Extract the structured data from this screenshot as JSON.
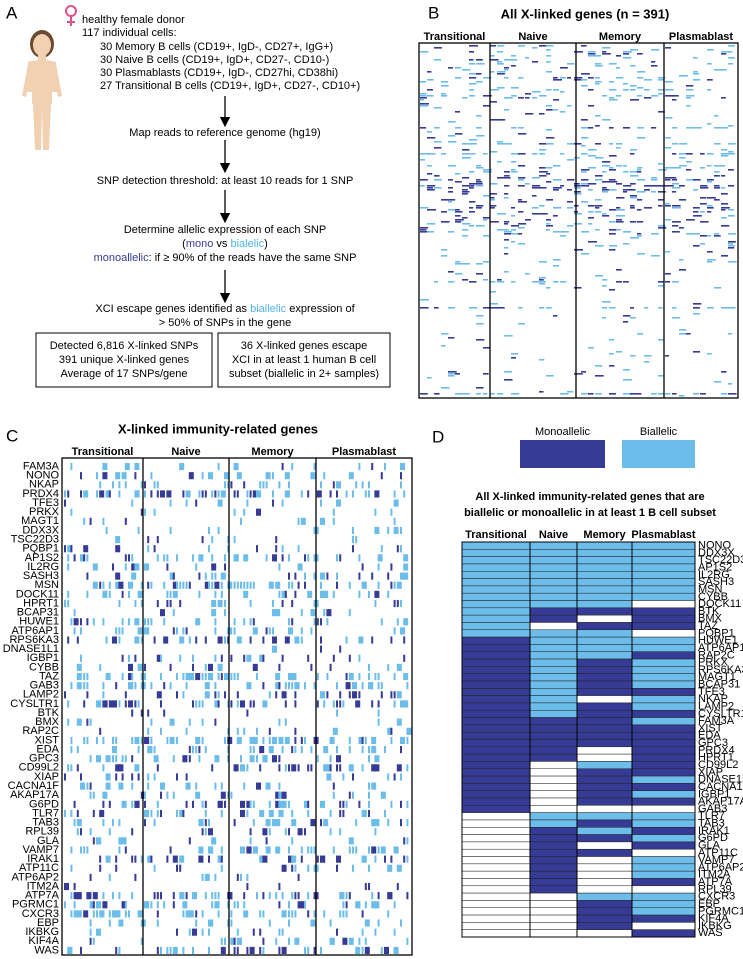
{
  "panel_labels": [
    "A",
    "B",
    "C",
    "D"
  ],
  "panel_a": {
    "donor": "healthy female donor",
    "cells_heading": "117 individual cells:",
    "cells": [
      "30 Memory B cells (CD19+, IgD-, CD27+, IgG+)",
      "30 Naive B cells (CD19+, IgD+, CD27-, CD10-)",
      "30 Plasmablasts (CD19+, IgD-, CD27hi, CD38hi)",
      "27 Transitional B cells (CD19+, IgD+, CD27-, CD10+)"
    ],
    "map_step": "Map reads to reference genome (hg19)",
    "snp_step": "SNP detection threshold: at least 10 reads for 1 SNP",
    "allelic_step": {
      "line1": "Determine allelic expression of each SNP",
      "open": "(",
      "mono": "mono",
      "vs": " vs ",
      "bi": "bialelic",
      "close": ")",
      "mono_word": "monoallelic",
      "mono_rule": ": if ≥ 90% of the reads have the same SNP"
    },
    "escape_step": {
      "prefix": "XCI escape genes identified as ",
      "bi_word": "biallelic",
      "suffix": " expression of",
      "line2": "> 50% of SNPs in the gene"
    },
    "box_left": [
      "Detected 6,816 X-linked SNPs",
      "391 unique X-linked genes",
      "Average of 17 SNPs/gene"
    ],
    "box_right": [
      "36 X-linked genes escape",
      "XCI in at least 1 human B cell",
      "subset (biallelic in 2+ samples)"
    ]
  },
  "panel_b": {
    "title": "All X-linked genes (n = 391)",
    "columns": [
      "Transitional",
      "Naive",
      "Memory",
      "Plasmablast"
    ]
  },
  "panel_c": {
    "title": "X-linked immunity-related genes",
    "columns": [
      "Transitional",
      "Naive",
      "Memory",
      "Plasmablast"
    ],
    "genes": [
      "FAM3A",
      "NONO",
      "NKAP",
      "PRDX4",
      "TFE3",
      "PRKX",
      "MAGT1",
      "DDX3X",
      "TSC22D3",
      "PQBP1",
      "AP1S2",
      "IL2RG",
      "SASH3",
      "MSN",
      "DOCK11",
      "HPRT1",
      "BCAP31",
      "HUWE1",
      "ATP6AP1",
      "RPS6KA3",
      "DNASE1L1",
      "IGBP1",
      "CYBB",
      "TAZ",
      "GAB3",
      "LAMP2",
      "CYSLTR1",
      "BTK",
      "BMX",
      "RAP2C",
      "XIST",
      "EDA",
      "GPC3",
      "CD99L2",
      "XIAP",
      "CACNA1F",
      "AKAP17A",
      "G6PD",
      "TLR7",
      "TAB3",
      "RPL39",
      "GLA",
      "VAMP7",
      "IRAK1",
      "ATP11C",
      "ATP6AP2",
      "ITM2A",
      "ATP7A",
      "PGRMC1",
      "CXCR3",
      "EBP",
      "IKBKG",
      "KIF4A",
      "WAS"
    ]
  },
  "panel_d": {
    "legend": [
      {
        "name": "Monoallelic",
        "color": "#363b96"
      },
      {
        "name": "Biallelic",
        "color": "#6dbdeb"
      }
    ],
    "title": [
      "All X-linked immunity-related genes that are",
      "biallelic or monoallelic in at least 1 B cell subset"
    ],
    "columns": [
      "Transitional",
      "Naive",
      "Memory",
      "Plasmablast"
    ],
    "rows": [
      {
        "gene": "NONO",
        "states": [
          "Biallelic",
          "Biallelic",
          "Biallelic",
          "Biallelic"
        ]
      },
      {
        "gene": "DDX3X",
        "states": [
          "Biallelic",
          "Biallelic",
          "Biallelic",
          "Biallelic"
        ]
      },
      {
        "gene": "TSC22D3",
        "states": [
          "Biallelic",
          "Biallelic",
          "Biallelic",
          "Biallelic"
        ]
      },
      {
        "gene": "AP1S2",
        "states": [
          "Biallelic",
          "Biallelic",
          "Biallelic",
          "Biallelic"
        ]
      },
      {
        "gene": "IL2RG",
        "states": [
          "Biallelic",
          "Biallelic",
          "Biallelic",
          "Biallelic"
        ]
      },
      {
        "gene": "SASH3",
        "states": [
          "Biallelic",
          "Biallelic",
          "Biallelic",
          "Biallelic"
        ]
      },
      {
        "gene": "MSN",
        "states": [
          "Biallelic",
          "Biallelic",
          "Biallelic",
          "Biallelic"
        ]
      },
      {
        "gene": "CYBB",
        "states": [
          "Biallelic",
          "Biallelic",
          "Biallelic",
          "Biallelic"
        ]
      },
      {
        "gene": "DOCK11",
        "states": [
          "Biallelic",
          "Biallelic",
          "Biallelic",
          null
        ]
      },
      {
        "gene": "BTK",
        "states": [
          "Biallelic",
          "Monoallelic",
          "Monoallelic",
          "Monoallelic"
        ]
      },
      {
        "gene": "BMX",
        "states": [
          "Biallelic",
          "Monoallelic",
          null,
          "Monoallelic"
        ]
      },
      {
        "gene": "TAZ",
        "states": [
          "Biallelic",
          null,
          "Monoallelic",
          "Monoallelic"
        ]
      },
      {
        "gene": "PQBP1",
        "states": [
          "Biallelic",
          "Biallelic",
          "Biallelic",
          null
        ]
      },
      {
        "gene": "HUWE1",
        "states": [
          "Monoallelic",
          "Biallelic",
          "Biallelic",
          "Biallelic"
        ]
      },
      {
        "gene": "ATP6AP1",
        "states": [
          "Monoallelic",
          "Biallelic",
          "Biallelic",
          "Biallelic"
        ]
      },
      {
        "gene": "RAP2C",
        "states": [
          "Monoallelic",
          "Biallelic",
          "Biallelic",
          "Monoallelic"
        ]
      },
      {
        "gene": "PRKX",
        "states": [
          "Monoallelic",
          "Biallelic",
          "Monoallelic",
          "Biallelic"
        ]
      },
      {
        "gene": "RPS6KA3",
        "states": [
          "Monoallelic",
          "Biallelic",
          "Monoallelic",
          "Biallelic"
        ]
      },
      {
        "gene": "MAGT1",
        "states": [
          "Monoallelic",
          "Biallelic",
          "Monoallelic",
          "Biallelic"
        ]
      },
      {
        "gene": "BCAP31",
        "states": [
          "Monoallelic",
          "Biallelic",
          "Monoallelic",
          "Biallelic"
        ]
      },
      {
        "gene": "TFE3",
        "states": [
          "Monoallelic",
          "Biallelic",
          "Monoallelic",
          "Monoallelic"
        ]
      },
      {
        "gene": "NKAP",
        "states": [
          "Monoallelic",
          "Biallelic",
          null,
          "Biallelic"
        ]
      },
      {
        "gene": "LAMP2",
        "states": [
          "Monoallelic",
          "Biallelic",
          "Monoallelic",
          "Biallelic"
        ]
      },
      {
        "gene": "CYSLTR1",
        "states": [
          "Monoallelic",
          "Biallelic",
          "Monoallelic",
          "Monoallelic"
        ]
      },
      {
        "gene": "FAM3A",
        "states": [
          "Monoallelic",
          "Monoallelic",
          "Monoallelic",
          "Biallelic"
        ]
      },
      {
        "gene": "XIST",
        "color": "#d8232a",
        "states": [
          "Monoallelic",
          "Monoallelic",
          "Monoallelic",
          "Monoallelic"
        ]
      },
      {
        "gene": "EDA",
        "states": [
          "Monoallelic",
          "Monoallelic",
          "Monoallelic",
          "Monoallelic"
        ]
      },
      {
        "gene": "GPC3",
        "states": [
          "Monoallelic",
          "Monoallelic",
          "Monoallelic",
          "Monoallelic"
        ]
      },
      {
        "gene": "PRDX4",
        "states": [
          "Monoallelic",
          "Monoallelic",
          null,
          "Monoallelic"
        ]
      },
      {
        "gene": "HPRT1",
        "states": [
          "Monoallelic",
          "Monoallelic",
          null,
          "Monoallelic"
        ]
      },
      {
        "gene": "CD99L2",
        "states": [
          "Monoallelic",
          null,
          "Biallelic",
          "Monoallelic"
        ]
      },
      {
        "gene": "XIAP",
        "states": [
          "Monoallelic",
          null,
          "Monoallelic",
          "Monoallelic"
        ]
      },
      {
        "gene": "DNASE1L1",
        "states": [
          "Monoallelic",
          null,
          "Monoallelic",
          "Biallelic"
        ]
      },
      {
        "gene": "CACNA1F",
        "states": [
          "Monoallelic",
          null,
          "Monoallelic",
          "Monoallelic"
        ]
      },
      {
        "gene": "IGBP1",
        "states": [
          "Monoallelic",
          null,
          "Monoallelic",
          "Biallelic"
        ]
      },
      {
        "gene": "AKAP17A",
        "states": [
          "Monoallelic",
          null,
          "Monoallelic",
          "Monoallelic"
        ]
      },
      {
        "gene": "GAB3",
        "states": [
          "Monoallelic",
          null,
          null,
          null
        ]
      },
      {
        "gene": "TLR7",
        "states": [
          null,
          "Biallelic",
          "Biallelic",
          "Biallelic"
        ]
      },
      {
        "gene": "TAB3",
        "states": [
          null,
          "Biallelic",
          "Monoallelic",
          "Biallelic"
        ]
      },
      {
        "gene": "IRAK1",
        "states": [
          null,
          "Monoallelic",
          "Biallelic",
          "Monoallelic"
        ]
      },
      {
        "gene": "G6PD",
        "states": [
          null,
          "Monoallelic",
          "Monoallelic",
          "Biallelic"
        ]
      },
      {
        "gene": "GLA",
        "states": [
          null,
          "Monoallelic",
          null,
          "Monoallelic"
        ]
      },
      {
        "gene": "ATP11C",
        "states": [
          null,
          "Monoallelic",
          "Monoallelic",
          null
        ]
      },
      {
        "gene": "VAMP7",
        "states": [
          null,
          "Monoallelic",
          null,
          "Biallelic"
        ]
      },
      {
        "gene": "ATP6AP2",
        "states": [
          null,
          "Monoallelic",
          null,
          "Biallelic"
        ]
      },
      {
        "gene": "ITM2A",
        "states": [
          null,
          "Monoallelic",
          null,
          "Biallelic"
        ]
      },
      {
        "gene": "ATP7A",
        "states": [
          null,
          "Monoallelic",
          null,
          "Monoallelic"
        ]
      },
      {
        "gene": "RPL39",
        "states": [
          null,
          "Monoallelic",
          null,
          null
        ]
      },
      {
        "gene": "CXCR3",
        "states": [
          null,
          null,
          "Biallelic",
          "Biallelic"
        ]
      },
      {
        "gene": "EBP",
        "states": [
          null,
          null,
          "Monoallelic",
          "Biallelic"
        ]
      },
      {
        "gene": "PGRMC1",
        "states": [
          null,
          null,
          "Monoallelic",
          "Biallelic"
        ]
      },
      {
        "gene": "KIF4A",
        "states": [
          null,
          null,
          "Monoallelic",
          "Monoallelic"
        ]
      },
      {
        "gene": "IKBKG",
        "states": [
          null,
          null,
          "Monoallelic",
          null
        ]
      },
      {
        "gene": "WAS",
        "states": [
          null,
          null,
          null,
          "Monoallelic"
        ]
      }
    ]
  }
}
